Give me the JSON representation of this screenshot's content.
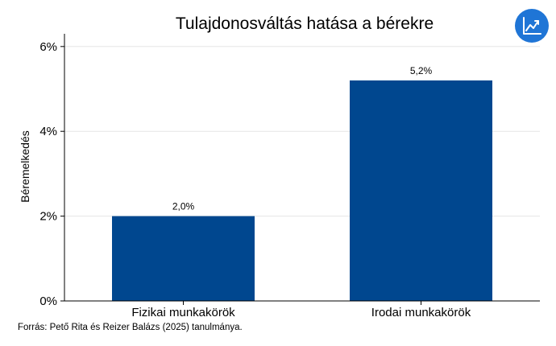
{
  "chart_data": {
    "type": "bar",
    "title": "Tulajdonosváltás hatása a bérekre",
    "xlabel": "",
    "ylabel": "Béremelkedés",
    "categories": [
      "Fizikai munkakörök",
      "Irodai munkakörök"
    ],
    "values": [
      2.0,
      5.2
    ],
    "data_labels": [
      "2,0%",
      "5,2%"
    ],
    "ylim": [
      0,
      6.3
    ],
    "y_ticks": [
      0,
      2,
      4,
      6
    ],
    "y_tick_labels": [
      "0%",
      "2%",
      "4%",
      "6%"
    ],
    "grid": true,
    "legend": "none",
    "bar_color": "#00478f",
    "grid_color": "#e6e6e6"
  },
  "source_note": "Forrás: Pető Rita és Reizer Balázs (2025) tanulmánya.",
  "logo": {
    "icon": "chart-trend-icon",
    "color": "#1f75d6"
  }
}
